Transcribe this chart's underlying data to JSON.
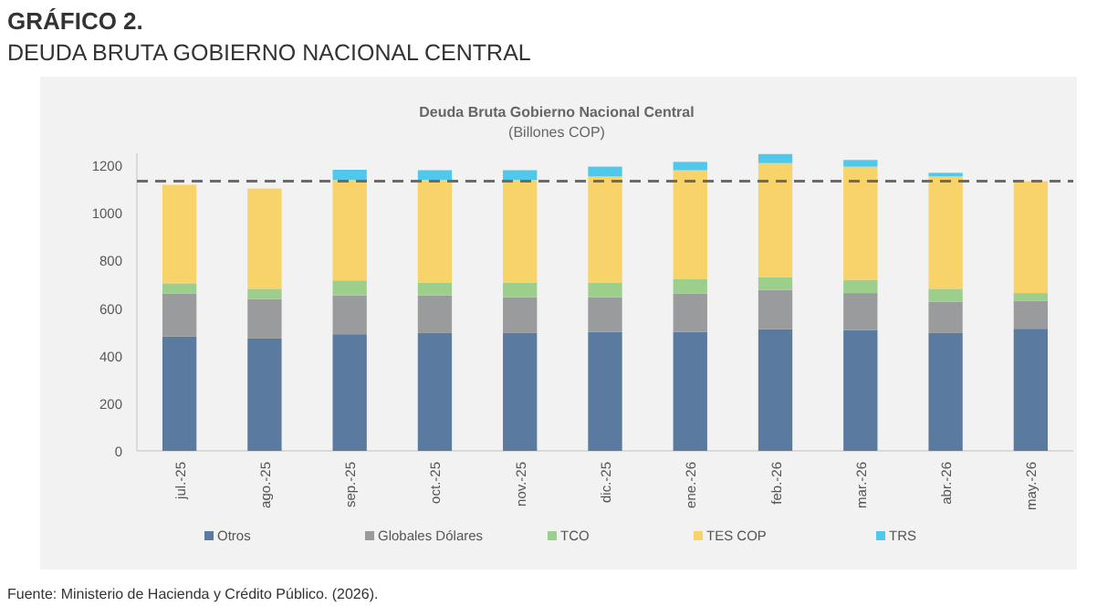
{
  "chart_data": {
    "type": "bar",
    "stacked": true,
    "title": "GRÁFICO 2.",
    "subtitle": "DEUDA BRUTA GOBIERNO NACIONAL CENTRAL",
    "annotations": [
      "Deuda Bruta Gobierno Nacional Central",
      "(Billones COP)",
      "Fuente: Ministerio de Hacienda y Crédito Público. (2026)."
    ],
    "categories": [
      "jul.-25",
      "ago.-25",
      "sep.-25",
      "oct.-25",
      "nov.-25",
      "dic.-25",
      "ene.-26",
      "feb.-26",
      "mar.-26",
      "abr.-26",
      "may.-26"
    ],
    "series": [
      {
        "name": "Otros",
        "color": "#5a7aa0",
        "values": [
          480,
          472,
          490,
          495,
          495,
          500,
          500,
          511,
          508,
          495,
          513
        ]
      },
      {
        "name": "Globales Dólares",
        "color": "#9a9b9c",
        "values": [
          180,
          166,
          163,
          158,
          150,
          145,
          160,
          165,
          155,
          132,
          117
        ]
      },
      {
        "name": "TCO",
        "color": "#9ccf8c",
        "values": [
          44,
          43,
          63,
          53,
          61,
          61,
          61,
          53,
          56,
          54,
          33
        ]
      },
      {
        "name": "TES COP",
        "color": "#f8d36a",
        "values": [
          414,
          421,
          422,
          432,
          432,
          447,
          458,
          480,
          475,
          472,
          470
        ]
      },
      {
        "name": "TRS",
        "color": "#4fc8ec",
        "values": [
          0,
          0,
          43,
          41,
          41,
          41,
          35,
          38,
          28,
          15,
          0
        ]
      }
    ],
    "ylim": [
      0,
      1250
    ],
    "yticks": [
      0,
      200,
      400,
      600,
      800,
      1000,
      1200
    ],
    "ref_lines": [
      {
        "axis": "y",
        "value": 1133,
        "color": "#6b6b6b",
        "line_style": "dashed"
      }
    ],
    "legend": "bottom"
  }
}
